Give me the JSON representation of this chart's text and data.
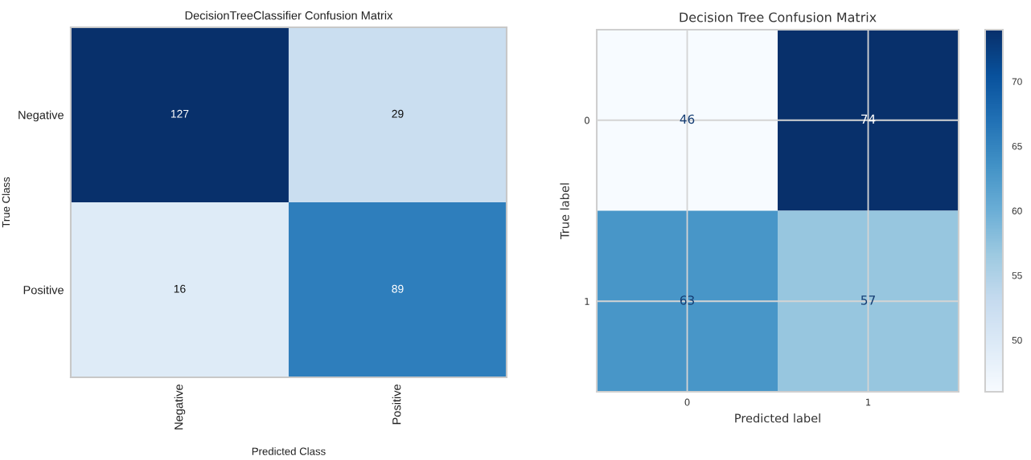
{
  "chart_data": [
    {
      "type": "heatmap",
      "title": "DecisionTreeClassifier Confusion Matrix",
      "xlabel": "Predicted Class",
      "ylabel": "True Class",
      "categories": [
        "Negative",
        "Positive"
      ],
      "y_categories": [
        "Negative",
        "Positive"
      ],
      "cells": [
        [
          127,
          29
        ],
        [
          16,
          89
        ]
      ],
      "data_labels": true
    },
    {
      "type": "heatmap",
      "title": "Decision Tree Confusion Matrix",
      "xlabel": "Predicted label",
      "ylabel": "True label",
      "categories": [
        "0",
        "1"
      ],
      "y_categories": [
        "0",
        "1"
      ],
      "cells": [
        [
          46,
          74
        ],
        [
          63,
          57
        ]
      ],
      "clim": [
        46,
        74
      ],
      "cticks": [
        50,
        55,
        60,
        65,
        70
      ],
      "data_labels": true,
      "grid": true
    }
  ]
}
